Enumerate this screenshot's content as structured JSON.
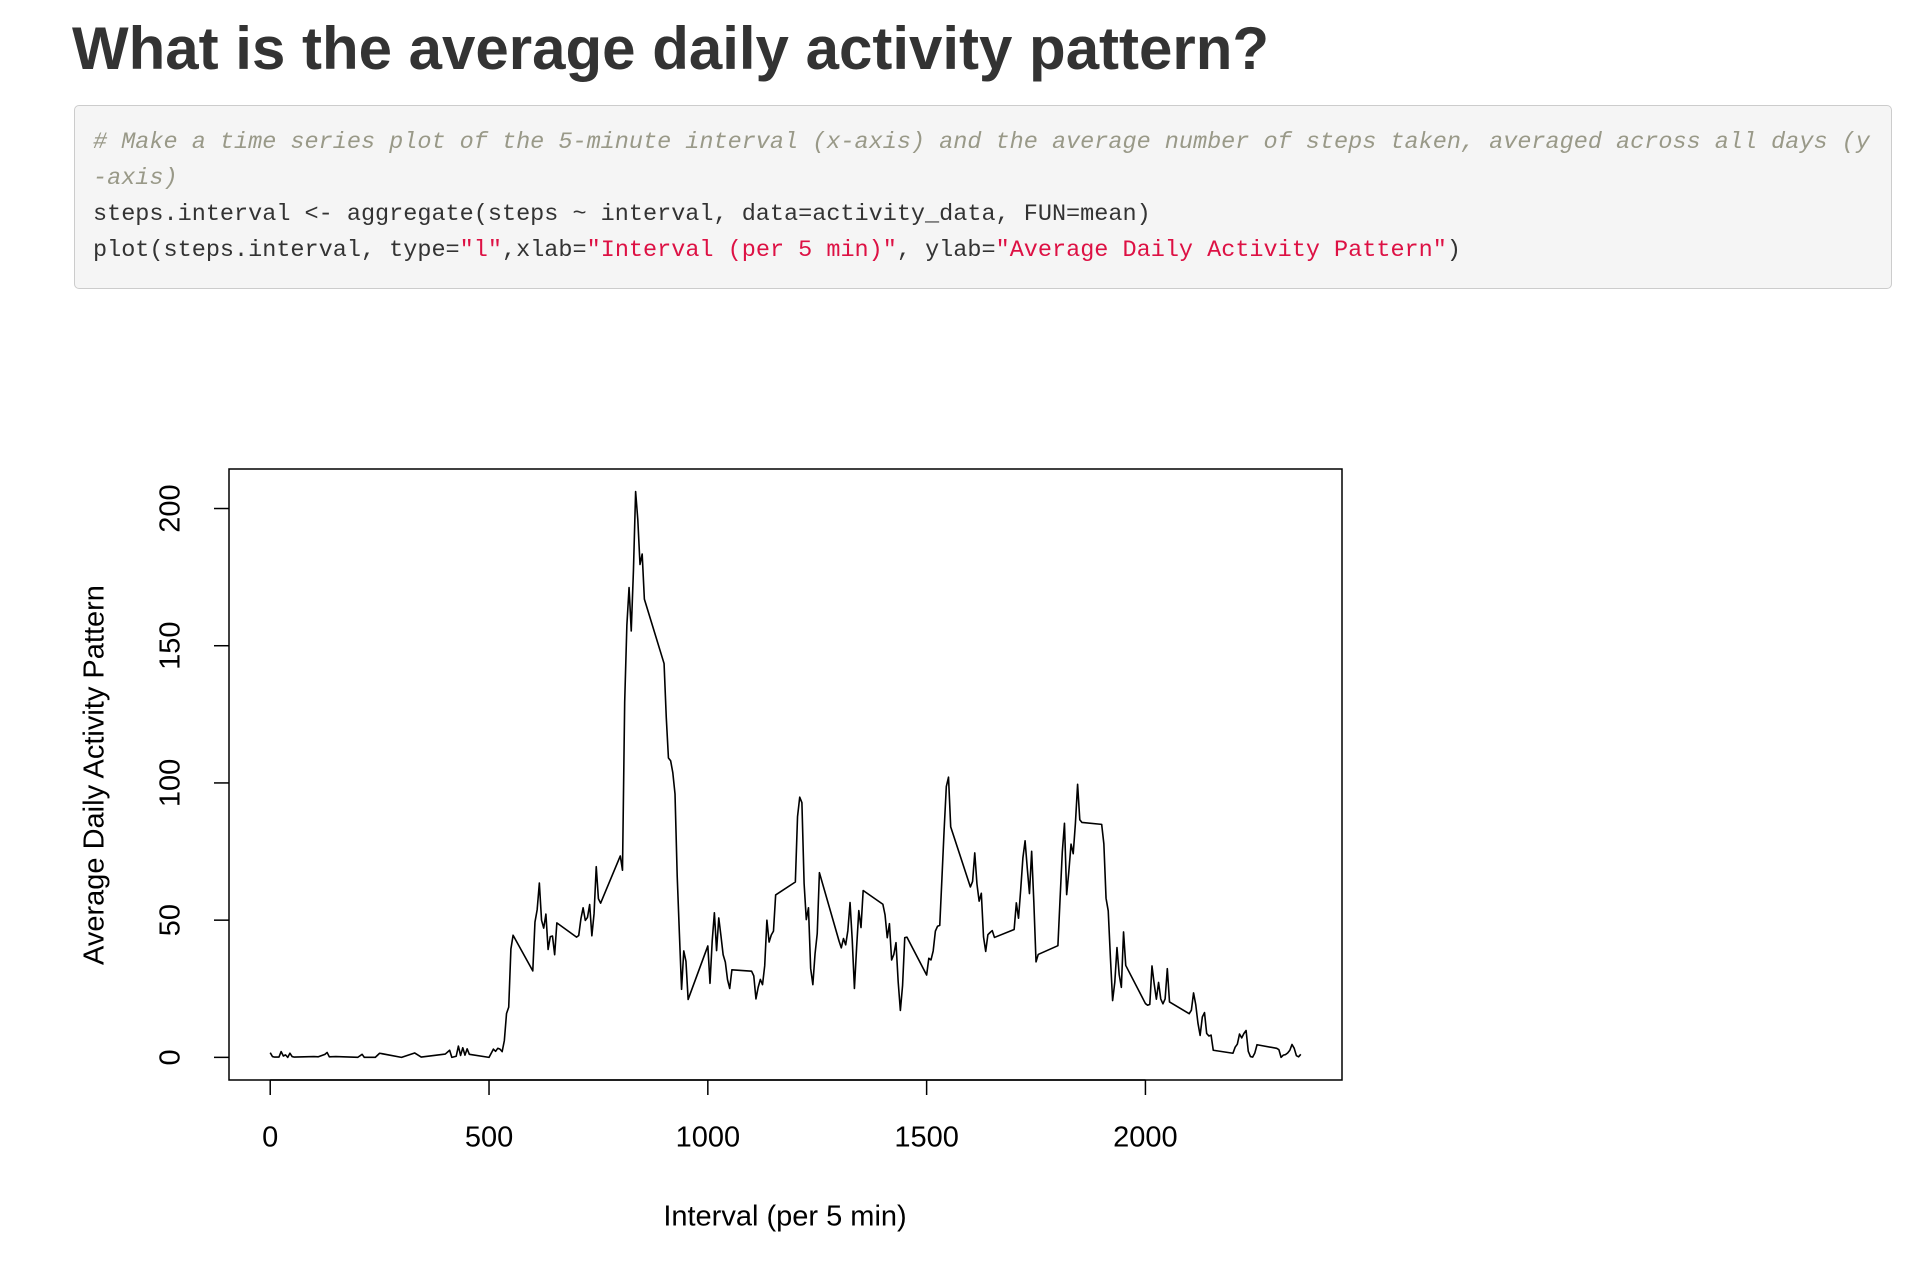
{
  "header": {
    "title": "What is the average daily activity pattern?"
  },
  "code": {
    "comment": "# Make a time series plot of the 5-minute interval (x-axis) and the average number of steps taken, averaged across all days (y-axis)",
    "line1": "steps.interval <- aggregate(steps ~ interval, data=activity_data, FUN=mean)",
    "line2": [
      "plot(steps.interval, type=",
      "\"l\"",
      ",xlab=",
      "\"Interval (per 5 min)\"",
      ", ylab=",
      "\"Average Daily Activity Pattern\"",
      ")"
    ]
  },
  "chart_data": {
    "type": "line",
    "xlabel": "Interval (per 5 min)",
    "ylabel": "Average Daily Activity Pattern",
    "color": "#000000",
    "xlim": [
      -94.2,
      2449.2
    ],
    "ylim": [
      -8.25,
      214.4
    ],
    "xticks": [
      0,
      500,
      1000,
      1500,
      2000
    ],
    "yticks": [
      0,
      50,
      100,
      150,
      200
    ],
    "x": [
      0,
      5,
      10,
      20,
      25,
      30,
      35,
      40,
      45,
      50,
      55,
      100,
      110,
      125,
      130,
      135,
      150,
      200,
      210,
      215,
      240,
      250,
      300,
      330,
      345,
      400,
      410,
      415,
      425,
      430,
      435,
      440,
      445,
      450,
      455,
      500,
      510,
      515,
      520,
      525,
      530,
      535,
      540,
      545,
      550,
      555,
      600,
      605,
      610,
      615,
      620,
      625,
      630,
      635,
      640,
      645,
      650,
      655,
      700,
      705,
      710,
      715,
      720,
      725,
      730,
      735,
      740,
      745,
      750,
      755,
      800,
      805,
      810,
      815,
      820,
      825,
      830,
      835,
      840,
      845,
      850,
      855,
      900,
      905,
      910,
      915,
      920,
      925,
      930,
      935,
      940,
      945,
      950,
      955,
      1000,
      1005,
      1010,
      1015,
      1020,
      1025,
      1030,
      1035,
      1040,
      1045,
      1050,
      1055,
      1100,
      1105,
      1110,
      1115,
      1120,
      1125,
      1130,
      1135,
      1140,
      1145,
      1150,
      1155,
      1200,
      1205,
      1210,
      1215,
      1220,
      1225,
      1230,
      1235,
      1240,
      1245,
      1250,
      1255,
      1300,
      1305,
      1310,
      1315,
      1320,
      1325,
      1330,
      1335,
      1340,
      1345,
      1350,
      1355,
      1400,
      1405,
      1410,
      1415,
      1420,
      1425,
      1430,
      1435,
      1440,
      1445,
      1450,
      1455,
      1500,
      1505,
      1510,
      1515,
      1520,
      1525,
      1530,
      1535,
      1540,
      1545,
      1550,
      1555,
      1600,
      1605,
      1610,
      1615,
      1620,
      1625,
      1630,
      1635,
      1640,
      1645,
      1650,
      1655,
      1700,
      1705,
      1710,
      1715,
      1720,
      1725,
      1730,
      1735,
      1740,
      1745,
      1750,
      1755,
      1800,
      1805,
      1810,
      1815,
      1820,
      1825,
      1830,
      1835,
      1840,
      1845,
      1850,
      1855,
      1900,
      1905,
      1910,
      1915,
      1920,
      1925,
      1930,
      1935,
      1940,
      1945,
      1950,
      1955,
      2000,
      2005,
      2010,
      2015,
      2020,
      2025,
      2030,
      2035,
      2040,
      2045,
      2050,
      2055,
      2100,
      2105,
      2110,
      2115,
      2120,
      2125,
      2130,
      2135,
      2140,
      2145,
      2150,
      2155,
      2200,
      2205,
      2210,
      2215,
      2220,
      2225,
      2230,
      2235,
      2240,
      2245,
      2250,
      2255,
      2300,
      2305,
      2310,
      2315,
      2320,
      2325,
      2330,
      2335,
      2340,
      2345,
      2350,
      2355
    ],
    "values": [
      1.7,
      0.3,
      0.1,
      0.1,
      2.1,
      0.5,
      0.9,
      0,
      1.5,
      0.3,
      0.1,
      0.3,
      0.2,
      1.1,
      1.8,
      0.2,
      0.3,
      0,
      1.1,
      0,
      0,
      1.5,
      0,
      1.6,
      0.1,
      1.2,
      2.6,
      0,
      0.4,
      4.1,
      0.7,
      3.5,
      0.8,
      3.1,
      1.1,
      0,
      3.0,
      2.2,
      3.3,
      3.0,
      2.1,
      6.1,
      16.0,
      18.3,
      39.5,
      44.5,
      31.5,
      49.3,
      53.8,
      63.5,
      50.0,
      47.1,
      52.2,
      39.3,
      44.0,
      44.2,
      37.4,
      49.0,
      43.8,
      44.4,
      50.5,
      54.5,
      49.9,
      51.0,
      55.7,
      44.3,
      52.3,
      69.5,
      57.8,
      56.2,
      73.4,
      68.2,
      129.4,
      157.5,
      171.2,
      155.4,
      177.3,
      206.2,
      195.9,
      179.6,
      183.4,
      167.0,
      143.5,
      124.0,
      109.1,
      108.1,
      103.7,
      96.0,
      66.2,
      45.2,
      24.8,
      38.8,
      35.0,
      21.1,
      40.6,
      27.0,
      42.4,
      52.7,
      38.9,
      50.8,
      44.3,
      37.4,
      34.7,
      28.3,
      25.1,
      31.9,
      31.4,
      29.7,
      21.3,
      25.5,
      28.4,
      26.5,
      33.4,
      50.0,
      42.0,
      44.6,
      46.0,
      59.2,
      63.9,
      87.7,
      94.8,
      92.8,
      63.4,
      50.2,
      54.5,
      32.4,
      26.5,
      37.7,
      45.1,
      67.3,
      42.3,
      39.9,
      43.3,
      41.0,
      46.2,
      56.4,
      42.8,
      25.1,
      40.0,
      53.5,
      47.3,
      60.8,
      55.8,
      51.9,
      43.6,
      48.7,
      35.5,
      37.5,
      41.8,
      27.5,
      17.1,
      26.1,
      43.6,
      43.8,
      30.0,
      36.1,
      35.5,
      38.8,
      46.0,
      47.8,
      48.1,
      65.3,
      82.9,
      98.7,
      102.1,
      84.0,
      62.1,
      64.1,
      74.5,
      63.2,
      56.9,
      59.8,
      43.9,
      38.6,
      44.7,
      45.5,
      46.2,
      43.7,
      46.6,
      56.3,
      50.7,
      61.2,
      72.7,
      78.9,
      68.9,
      59.7,
      75.1,
      56.5,
      34.8,
      37.5,
      40.7,
      58.0,
      74.7,
      85.3,
      59.3,
      67.8,
      77.7,
      74.2,
      85.3,
      99.5,
      86.6,
      85.6,
      84.9,
      77.8,
      58.0,
      53.4,
      36.3,
      20.7,
      27.4,
      40.0,
      30.2,
      25.5,
      45.7,
      33.5,
      19.6,
      19.0,
      19.3,
      33.3,
      26.8,
      21.2,
      27.3,
      21.3,
      19.5,
      21.3,
      32.3,
      20.2,
      15.9,
      17.2,
      23.5,
      19.2,
      12.5,
      8.0,
      14.7,
      16.3,
      8.7,
      7.8,
      8.1,
      2.6,
      1.5,
      3.7,
      4.8,
      8.5,
      7.1,
      8.7,
      9.8,
      2.2,
      0.3,
      0.1,
      1.6,
      4.6,
      3.3,
      2.8,
      0,
      0.8,
      1.0,
      1.6,
      2.6,
      4.7,
      3.3,
      0.6,
      0.2,
      1.1
    ]
  }
}
